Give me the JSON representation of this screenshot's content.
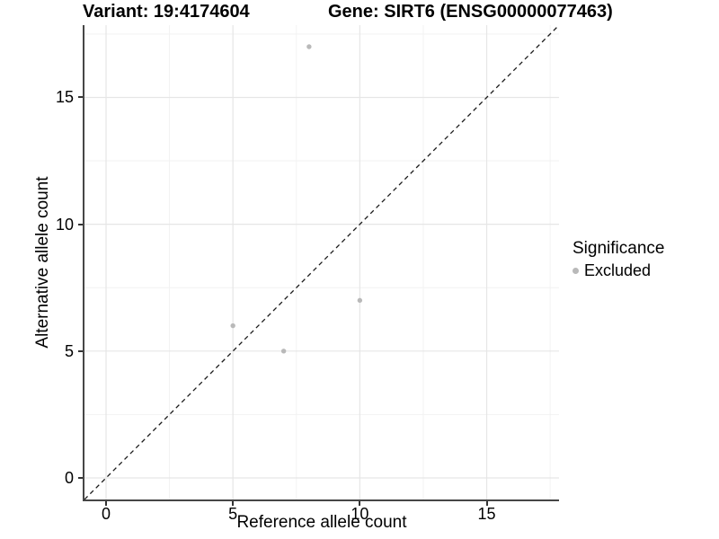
{
  "header": {
    "variant_title": "Variant: 19:4174604",
    "gene_title": "Gene: SIRT6 (ENSG00000077463)"
  },
  "axes": {
    "x_label": "Reference allele count",
    "y_label": "Alternative allele count"
  },
  "legend": {
    "title": "Significance",
    "items": [
      {
        "label": "Excluded",
        "color": "#b9b9b9"
      }
    ]
  },
  "colors": {
    "grid_major": "#e6e6e6",
    "grid_minor": "#f2f2f2",
    "axis_line": "#464646",
    "dashed_line": "#1a1a1a",
    "point": "#b9b9b9",
    "text": "#000000"
  },
  "chart_data": {
    "type": "scatter",
    "title_left": "Variant: 19:4174604",
    "title_right": "Gene: SIRT6 (ENSG00000077463)",
    "xlabel": "Reference allele count",
    "ylabel": "Alternative allele count",
    "xlim": [
      -0.85,
      17.85
    ],
    "ylim": [
      -0.85,
      17.85
    ],
    "x_ticks": [
      0,
      5,
      10,
      15
    ],
    "y_ticks": [
      0,
      5,
      10,
      15
    ],
    "x_minor_ticks": [
      2.5,
      7.5,
      12.5,
      17.5
    ],
    "y_minor_ticks": [
      2.5,
      7.5,
      12.5,
      17.5
    ],
    "grid": true,
    "legend_position": "right",
    "reference_line": {
      "type": "identity",
      "slope": 1,
      "intercept": 0,
      "style": "dashed"
    },
    "series": [
      {
        "name": "Excluded",
        "color": "#b9b9b9",
        "points": [
          [
            8,
            17
          ],
          [
            10,
            7
          ],
          [
            5,
            6
          ],
          [
            7,
            5
          ]
        ]
      }
    ]
  }
}
